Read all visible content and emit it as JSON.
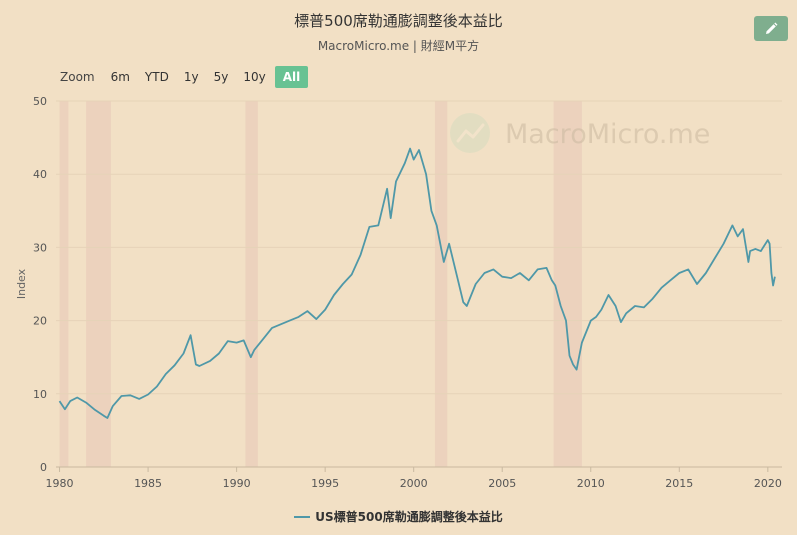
{
  "header": {
    "title": "標普500席勒通膨調整後本益比",
    "subtitle": "MacroMicro.me | 財經M平方"
  },
  "watermark": "MacroMicro.me",
  "zoom": {
    "label": "Zoom",
    "options": [
      "6m",
      "YTD",
      "1y",
      "5y",
      "10y",
      "All"
    ],
    "selected": "All"
  },
  "colors": {
    "background": "#f2e0c5",
    "line": "#4f98a8",
    "recession": "#ebcfbb",
    "zoom_active": "#68c293",
    "edit_button": "#7fae8e"
  },
  "chart_data": {
    "type": "line",
    "xlabel": "",
    "ylabel": "Index",
    "ylim": [
      0,
      50
    ],
    "xlim": [
      1979.8,
      2020.8
    ],
    "yticks": [
      0,
      10,
      20,
      30,
      40,
      50
    ],
    "xticks": [
      1980,
      1985,
      1990,
      1995,
      2000,
      2005,
      2010,
      2015,
      2020
    ],
    "grid": true,
    "legend_position": "bottom-center",
    "recession_periods": [
      [
        1980.0,
        1980.5
      ],
      [
        1981.5,
        1982.9
      ],
      [
        1990.5,
        1991.2
      ],
      [
        2001.2,
        2001.9
      ],
      [
        2007.9,
        2009.5
      ]
    ],
    "series": [
      {
        "name": "US標普500席勒通膨調整後本益比",
        "x": [
          1980.0,
          1980.3,
          1980.6,
          1981.0,
          1981.5,
          1982.0,
          1982.5,
          1982.7,
          1983.0,
          1983.5,
          1984.0,
          1984.5,
          1985.0,
          1985.5,
          1986.0,
          1986.5,
          1987.0,
          1987.4,
          1987.7,
          1987.9,
          1988.5,
          1989.0,
          1989.5,
          1990.0,
          1990.4,
          1990.8,
          1991.0,
          1991.5,
          1992.0,
          1993.0,
          1993.5,
          1994.0,
          1994.5,
          1995.0,
          1995.5,
          1996.0,
          1996.5,
          1997.0,
          1997.5,
          1998.0,
          1998.5,
          1998.7,
          1999.0,
          1999.5,
          1999.8,
          2000.0,
          2000.3,
          2000.7,
          2001.0,
          2001.3,
          2001.7,
          2002.0,
          2002.5,
          2002.8,
          2003.0,
          2003.5,
          2004.0,
          2004.5,
          2005.0,
          2005.5,
          2006.0,
          2006.5,
          2007.0,
          2007.5,
          2007.8,
          2008.0,
          2008.3,
          2008.6,
          2008.8,
          2009.0,
          2009.2,
          2009.5,
          2010.0,
          2010.3,
          2010.6,
          2011.0,
          2011.4,
          2011.7,
          2012.0,
          2012.5,
          2013.0,
          2013.5,
          2014.0,
          2014.5,
          2015.0,
          2015.5,
          2016.0,
          2016.5,
          2017.0,
          2017.5,
          2018.0,
          2018.3,
          2018.6,
          2018.9,
          2019.0,
          2019.3,
          2019.6,
          2020.0,
          2020.1,
          2020.2,
          2020.3,
          2020.4
        ],
        "values": [
          9.0,
          7.9,
          9.0,
          9.5,
          8.8,
          7.8,
          7.0,
          6.7,
          8.3,
          9.7,
          9.8,
          9.3,
          9.9,
          11.0,
          12.7,
          13.9,
          15.5,
          18.0,
          14.0,
          13.8,
          14.5,
          15.5,
          17.2,
          17.0,
          17.3,
          15.0,
          16.0,
          17.5,
          19.0,
          20.0,
          20.5,
          21.3,
          20.2,
          21.5,
          23.5,
          25.0,
          26.3,
          29.0,
          32.8,
          33.0,
          38.0,
          34.0,
          39.0,
          41.5,
          43.5,
          42.0,
          43.3,
          40.0,
          35.0,
          33.0,
          28.0,
          30.5,
          25.5,
          22.5,
          22.0,
          25.0,
          26.5,
          27.0,
          26.0,
          25.8,
          26.5,
          25.5,
          27.0,
          27.2,
          25.5,
          24.8,
          22.0,
          20.0,
          15.2,
          14.0,
          13.3,
          17.0,
          20.0,
          20.5,
          21.5,
          23.5,
          22.0,
          19.8,
          21.0,
          22.0,
          21.8,
          23.0,
          24.5,
          25.5,
          26.5,
          27.0,
          25.0,
          26.5,
          28.5,
          30.5,
          33.0,
          31.5,
          32.5,
          28.0,
          29.5,
          29.8,
          29.5,
          31.0,
          30.5,
          26.5,
          24.8,
          26.0
        ]
      }
    ]
  }
}
